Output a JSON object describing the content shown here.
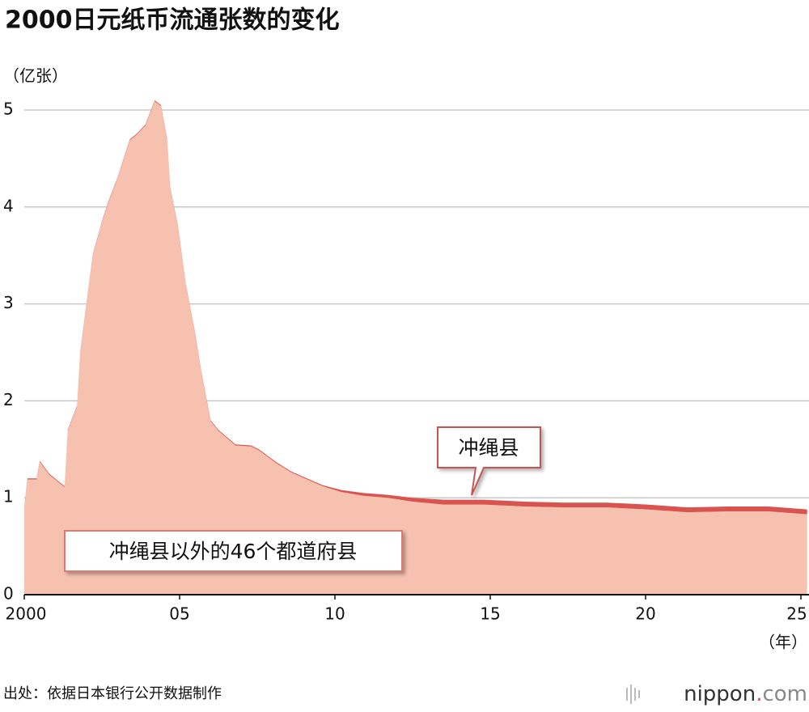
{
  "chart_data": {
    "type": "stacked_area",
    "title": "2000日元纸币流通张数的变化",
    "y_label": "（亿张）",
    "x_label": "（年）",
    "source": "出处：依据日本银行公开数据制作",
    "logo": [
      "nippon",
      ".",
      "com"
    ],
    "x": [
      2000.0,
      2000.1,
      2000.4,
      2000.5,
      2000.8,
      2001.1,
      2001.3,
      2001.4,
      2001.7,
      2001.8,
      2002.0,
      2002.2,
      2002.5,
      2002.7,
      2003.0,
      2003.4,
      2003.6,
      2003.9,
      2004.2,
      2004.4,
      2004.6,
      2004.7,
      2004.95,
      2005.2,
      2005.5,
      2005.7,
      2006.0,
      2006.25,
      2006.8,
      2007.3,
      2007.55,
      2008.1,
      2008.6,
      2009.1,
      2009.6,
      2010.2,
      2010.9,
      2011.7,
      2012.5,
      2013.5,
      2014.8,
      2016.1,
      2017.4,
      2018.75,
      2020.05,
      2021.35,
      2022.65,
      2023.95,
      2025.2
    ],
    "series": [
      {
        "name": "冲绳县以外的46个都道府县",
        "color": "#f6c1af",
        "values": [
          0.89,
          1.19,
          1.19,
          1.37,
          1.24,
          1.16,
          1.11,
          1.69,
          1.94,
          2.49,
          2.99,
          3.49,
          3.84,
          4.04,
          4.29,
          4.69,
          4.74,
          4.84,
          5.09,
          5.04,
          4.69,
          4.19,
          3.79,
          3.19,
          2.69,
          2.29,
          1.79,
          1.69,
          1.54,
          1.53,
          1.49,
          1.36,
          1.26,
          1.19,
          1.12,
          1.06,
          1.02,
          1.0,
          0.96,
          0.93,
          0.93,
          0.91,
          0.9,
          0.9,
          0.88,
          0.85,
          0.86,
          0.86,
          0.83
        ]
      },
      {
        "name": "冲绳县",
        "color": "#d9534f",
        "values": [
          0.01,
          0.01,
          0.01,
          0.01,
          0.01,
          0.01,
          0.01,
          0.01,
          0.01,
          0.01,
          0.01,
          0.01,
          0.01,
          0.01,
          0.01,
          0.01,
          0.01,
          0.01,
          0.01,
          0.01,
          0.01,
          0.01,
          0.01,
          0.01,
          0.01,
          0.01,
          0.01,
          0.01,
          0.01,
          0.01,
          0.01,
          0.01,
          0.01,
          0.01,
          0.01,
          0.02,
          0.03,
          0.03,
          0.04,
          0.05,
          0.05,
          0.05,
          0.05,
          0.05,
          0.05,
          0.05,
          0.05,
          0.05,
          0.05
        ]
      }
    ],
    "xlim": [
      2000,
      2025.2
    ],
    "xticks": [
      {
        "value": 2000,
        "label": "2000"
      },
      {
        "value": 2005,
        "label": "05"
      },
      {
        "value": 2010,
        "label": "10"
      },
      {
        "value": 2015,
        "label": "15"
      },
      {
        "value": 2020,
        "label": "20"
      },
      {
        "value": 2025,
        "label": "25"
      }
    ],
    "ylim": [
      0,
      5
    ],
    "yticks": [
      0,
      1,
      2,
      3,
      4,
      5
    ],
    "grid": true
  }
}
